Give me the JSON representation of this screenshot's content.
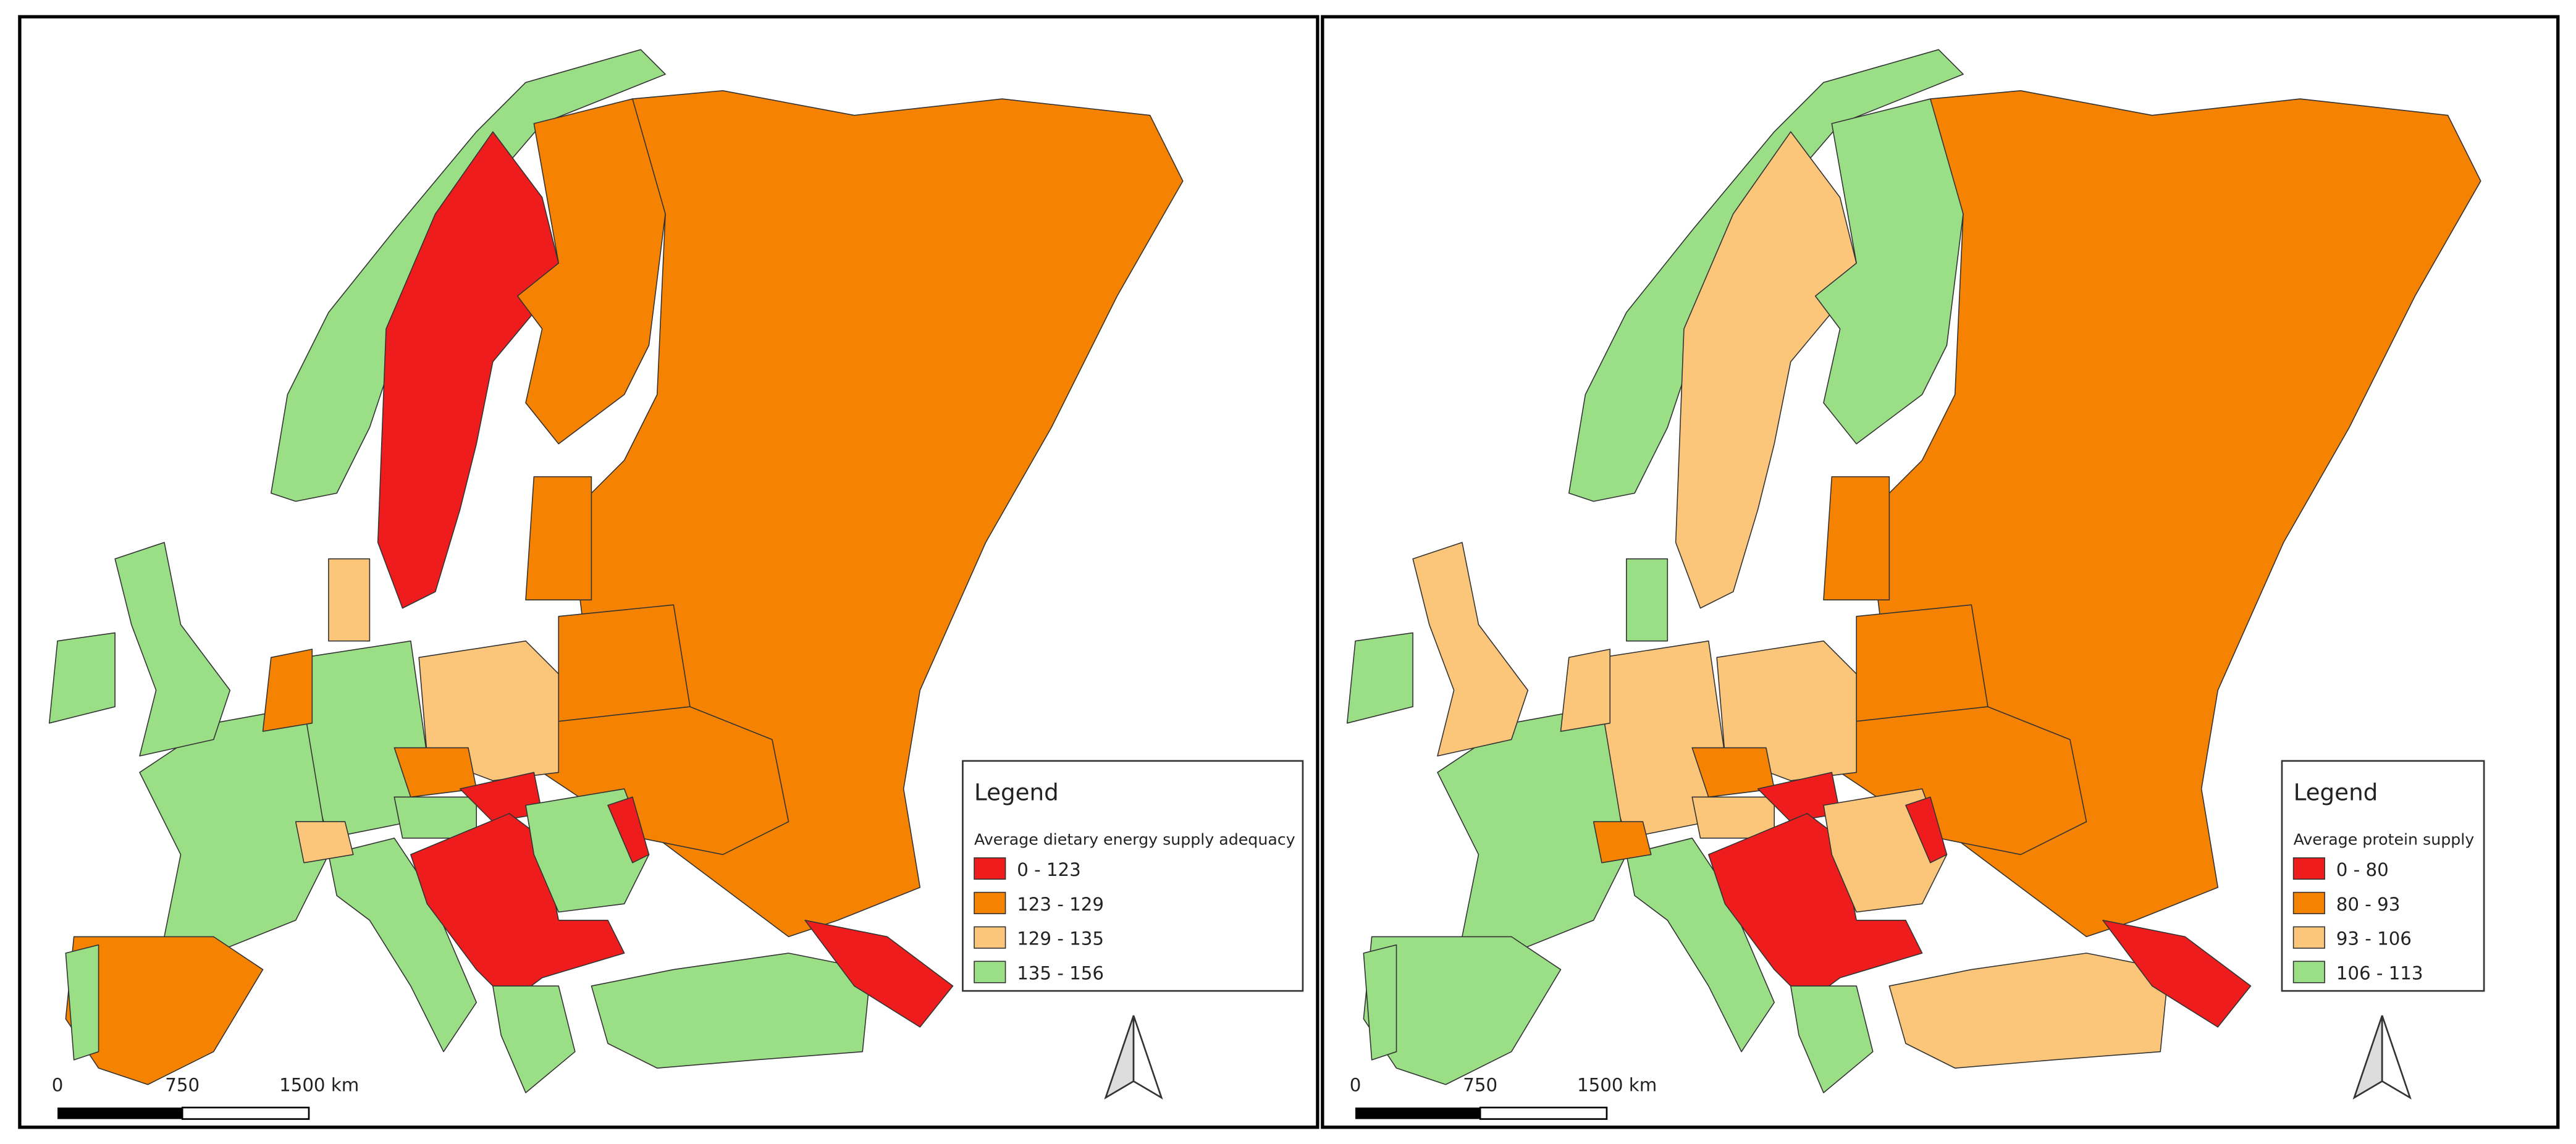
{
  "maps": [
    {
      "legend": {
        "heading": "Legend",
        "title": "Average dietary energy supply adequacy",
        "classes": [
          {
            "label": "0 - 123",
            "color": "#ee1c1c"
          },
          {
            "label": "123 - 129",
            "color": "#f58200"
          },
          {
            "label": "129 - 135",
            "color": "#fbc67a"
          },
          {
            "label": "135 - 156",
            "color": "#9ade86"
          }
        ]
      },
      "scale_bar": {
        "labels": [
          "0",
          "750",
          "1500 km"
        ]
      }
    },
    {
      "legend": {
        "heading": "Legend",
        "title": "Average protein supply",
        "classes": [
          {
            "label": "0 - 80",
            "color": "#ee1c1c"
          },
          {
            "label": "80 - 93",
            "color": "#f58200"
          },
          {
            "label": "93 - 106",
            "color": "#fbc67a"
          },
          {
            "label": "106 - 113",
            "color": "#9ade86"
          }
        ]
      },
      "scale_bar": {
        "labels": [
          "0",
          "750",
          "1500 km"
        ]
      }
    }
  ]
}
